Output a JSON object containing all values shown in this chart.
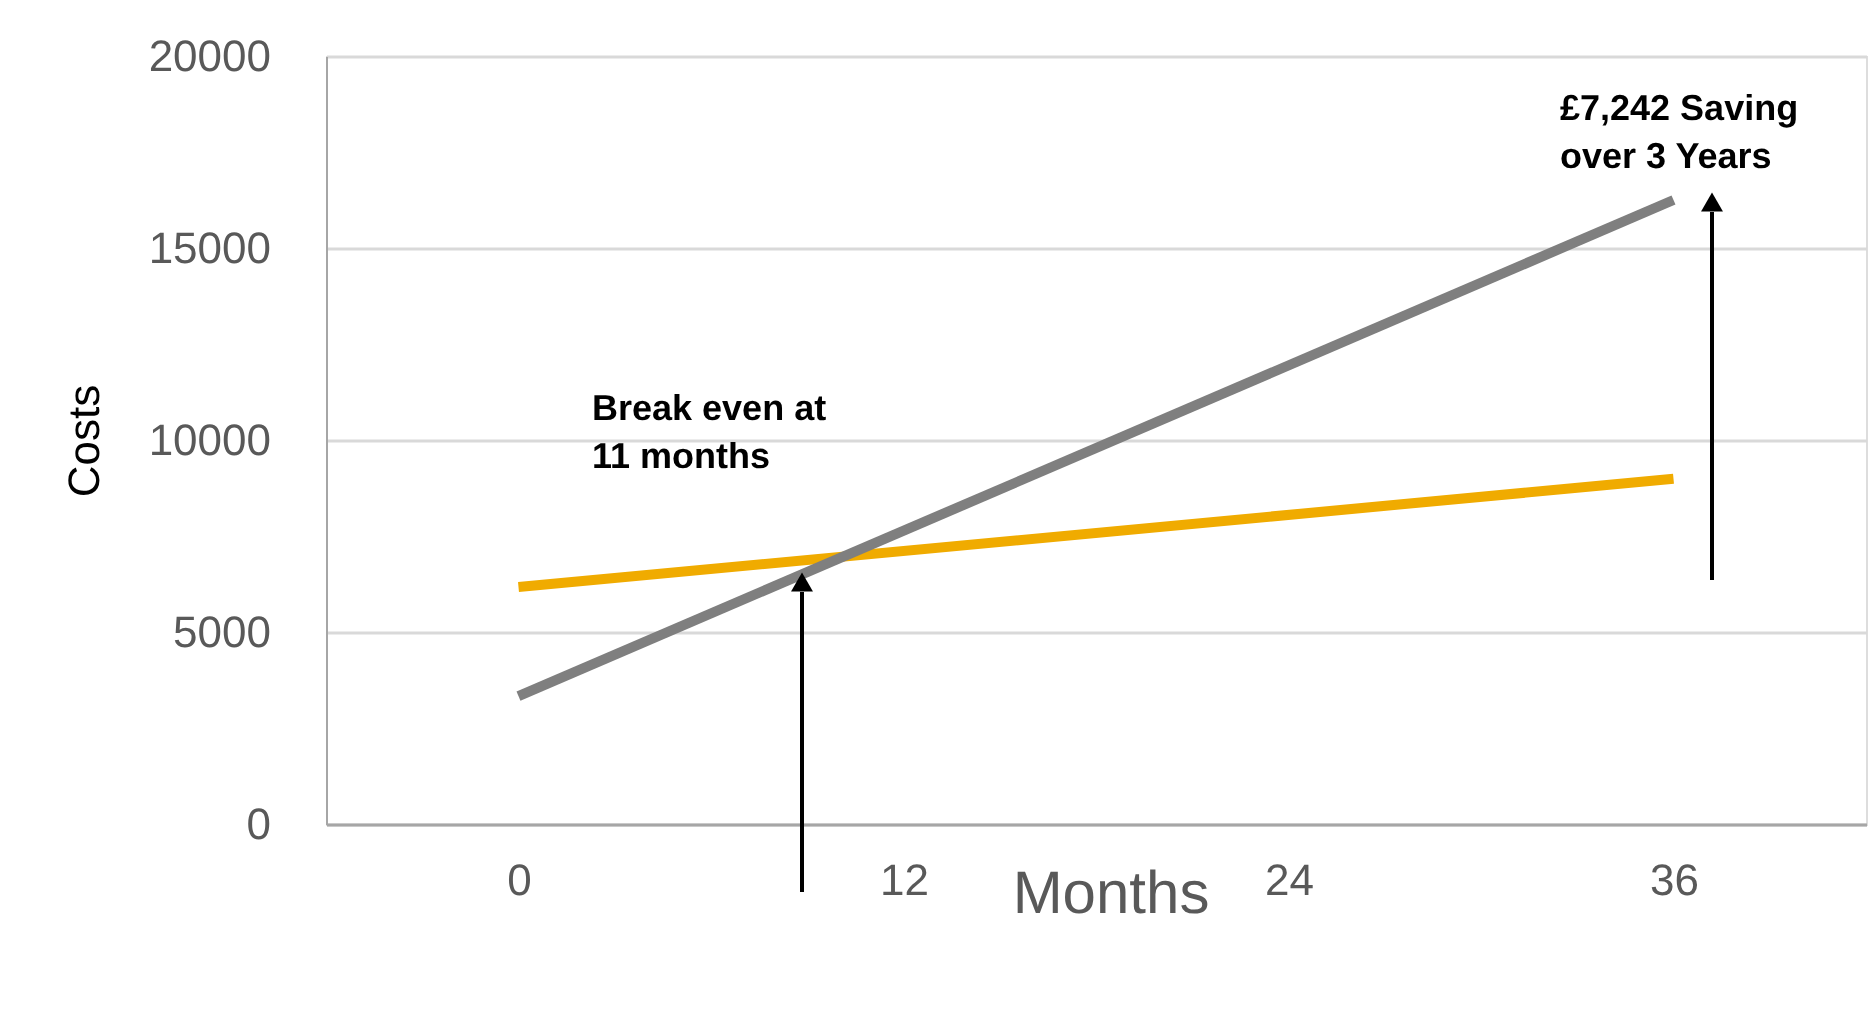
{
  "chart_data": {
    "type": "line",
    "xlabel": "Months",
    "ylabel": "Costs",
    "x": [
      0,
      36
    ],
    "series": [
      {
        "color": "#f0ab00",
        "values": [
          6170,
          8990
        ]
      },
      {
        "color": "#7f7f7f",
        "values": [
          3330,
          16250
        ]
      }
    ],
    "xlim": [
      -6,
      42
    ],
    "xticks": [
      0,
      12,
      24,
      36
    ],
    "ylim": [
      0,
      20000
    ],
    "yticks": [
      0,
      5000,
      10000,
      15000,
      20000
    ],
    "grid": "y",
    "legend": false,
    "marker": "none",
    "line_style": "solid",
    "annotations": [
      "Break even at\n11 months",
      "£7,242 Saving\nover 3 Years"
    ]
  }
}
